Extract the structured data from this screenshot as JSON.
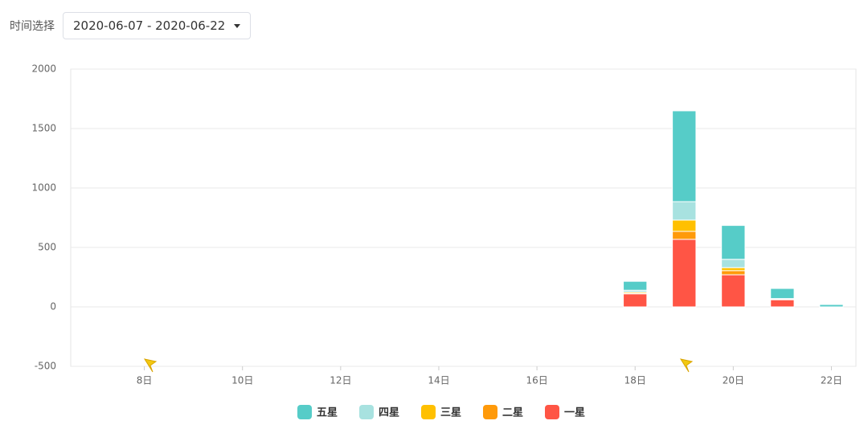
{
  "filter": {
    "label": "时间选择",
    "value": "2020-06-07 - 2020-06-22"
  },
  "chart_data": {
    "type": "bar",
    "stacked": true,
    "categories": [
      null,
      "8日",
      null,
      "10日",
      null,
      "12日",
      null,
      "14日",
      null,
      "16日",
      null,
      "18日",
      null,
      "20日",
      null,
      "22日"
    ],
    "series": [
      {
        "name": "一星",
        "color": "#ff5545",
        "values": [
          0,
          0,
          0,
          0,
          0,
          0,
          0,
          0,
          0,
          0,
          0,
          110,
          568,
          270,
          60,
          0
        ]
      },
      {
        "name": "二星",
        "color": "#ff9a0a",
        "values": [
          0,
          0,
          0,
          0,
          0,
          0,
          0,
          0,
          0,
          0,
          0,
          5,
          67,
          35,
          0,
          0
        ]
      },
      {
        "name": "三星",
        "color": "#ffc000",
        "values": [
          0,
          0,
          0,
          0,
          0,
          0,
          0,
          0,
          0,
          0,
          0,
          10,
          95,
          25,
          5,
          0
        ]
      },
      {
        "name": "四星",
        "color": "#a8e2e0",
        "values": [
          0,
          0,
          0,
          0,
          0,
          0,
          0,
          0,
          0,
          0,
          0,
          15,
          155,
          70,
          5,
          0
        ]
      },
      {
        "name": "五星",
        "color": "#56ccc8",
        "values": [
          0,
          0,
          0,
          0,
          0,
          0,
          0,
          0,
          0,
          0,
          0,
          75,
          764,
          285,
          85,
          20
        ]
      }
    ],
    "legend_order": [
      4,
      3,
      2,
      1,
      0
    ],
    "ylim": [
      -500,
      2000
    ],
    "yticks": [
      -500,
      0,
      500,
      1000,
      1500,
      2000
    ],
    "grid": true
  }
}
